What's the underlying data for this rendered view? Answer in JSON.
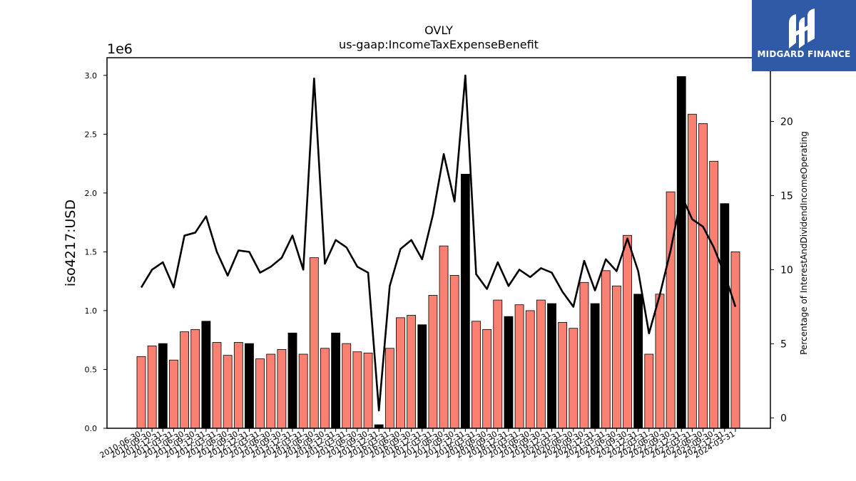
{
  "chart_data": {
    "type": "bar+line",
    "title": "OVLY",
    "subtitle": "us-gaap:IncomeTaxExpenseBenefit",
    "ylabel": "iso4217:USD",
    "y_multiplier_label": "1e6",
    "y2label": "Percentage of InterestAndDividendIncomeOperating",
    "ylim": [
      0,
      3150000
    ],
    "y2lim": [
      -0.7,
      24.3
    ],
    "y_ticks": [
      {
        "value": 0,
        "label": "0.0"
      },
      {
        "value": 500000,
        "label": "0.5"
      },
      {
        "value": 1000000,
        "label": "1.0"
      },
      {
        "value": 1500000,
        "label": "1.5"
      },
      {
        "value": 2000000,
        "label": "2.0"
      },
      {
        "value": 2500000,
        "label": "2.5"
      },
      {
        "value": 3000000,
        "label": "3.0"
      }
    ],
    "y2_ticks": [
      {
        "value": 0,
        "label": "0"
      },
      {
        "value": 5,
        "label": "5"
      },
      {
        "value": 10,
        "label": "10"
      },
      {
        "value": 15,
        "label": "15"
      },
      {
        "value": 20,
        "label": "20"
      }
    ],
    "categories": [
      "2010-06-30",
      "2010-09-30",
      "2010-12-31",
      "2011-03-31",
      "2011-06-30",
      "2011-09-30",
      "2011-12-31",
      "2012-03-31",
      "2012-06-30",
      "2012-09-30",
      "2012-12-31",
      "2013-03-31",
      "2013-06-30",
      "2013-09-30",
      "2013-12-31",
      "2014-03-31",
      "2014-06-30",
      "2014-09-30",
      "2014-12-31",
      "2015-03-31",
      "2015-06-30",
      "2015-09-30",
      "2015-12-31",
      "2016-03-31",
      "2016-06-30",
      "2016-09-30",
      "2016-12-31",
      "2017-03-31",
      "2017-06-30",
      "2017-09-30",
      "2017-12-31",
      "2018-03-31",
      "2018-06-30",
      "2018-09-30",
      "2018-12-31",
      "2019-03-31",
      "2019-06-30",
      "2019-09-30",
      "2019-12-31",
      "2020-03-31",
      "2020-06-30",
      "2020-09-30",
      "2020-12-31",
      "2021-03-31",
      "2021-06-30",
      "2021-09-30",
      "2021-12-31",
      "2022-03-31",
      "2022-06-30",
      "2022-09-30",
      "2022-12-31",
      "2023-03-31",
      "2023-06-30",
      "2023-09-30",
      "2023-12-31",
      "2024-03-31"
    ],
    "series": [
      {
        "name": "",
        "kind": "bar",
        "axis": "left",
        "colors": {
          "quarter": "#fa8072",
          "year_end": "#000000"
        },
        "values": [
          610000,
          700000,
          720000,
          580000,
          820000,
          840000,
          910000,
          730000,
          620000,
          730000,
          720000,
          590000,
          630000,
          670000,
          810000,
          630000,
          1450000,
          680000,
          810000,
          720000,
          650000,
          640000,
          30000,
          680000,
          940000,
          960000,
          880000,
          1130000,
          1550000,
          1300000,
          2160000,
          910000,
          840000,
          1090000,
          950000,
          1050000,
          1000000,
          1090000,
          1060000,
          900000,
          850000,
          1240000,
          1060000,
          1340000,
          1210000,
          1640000,
          1140000,
          630000,
          1140000,
          2010000,
          2990000,
          2670000,
          2590000,
          2270000,
          1910000,
          1500000
        ],
        "is_year_end": [
          false,
          false,
          true,
          false,
          false,
          false,
          true,
          false,
          false,
          false,
          true,
          false,
          false,
          false,
          true,
          false,
          false,
          false,
          true,
          false,
          false,
          false,
          true,
          false,
          false,
          false,
          true,
          false,
          false,
          false,
          true,
          false,
          false,
          false,
          true,
          false,
          false,
          false,
          true,
          false,
          false,
          false,
          true,
          false,
          false,
          false,
          true,
          false,
          false,
          false,
          true,
          false,
          false,
          false,
          true,
          false
        ]
      },
      {
        "name": "",
        "kind": "line",
        "axis": "right",
        "color": "#000000",
        "values": [
          8.8,
          10.0,
          10.5,
          8.8,
          12.3,
          12.5,
          13.6,
          11.2,
          9.6,
          11.3,
          11.2,
          9.8,
          10.2,
          10.8,
          12.3,
          10.0,
          22.9,
          10.4,
          12.0,
          11.5,
          10.2,
          9.8,
          0.5,
          8.9,
          11.4,
          12.0,
          10.7,
          13.7,
          17.8,
          14.6,
          23.1,
          9.7,
          8.7,
          10.5,
          8.9,
          10.0,
          9.5,
          10.1,
          9.8,
          8.5,
          7.5,
          10.6,
          8.6,
          10.7,
          9.9,
          12.1,
          9.9,
          5.7,
          8.3,
          11.3,
          15.0,
          13.4,
          12.9,
          11.5,
          9.7,
          7.5
        ]
      }
    ]
  },
  "logo": {
    "text": "MIDGARD FINANCE",
    "color": "#2e5aa8"
  }
}
